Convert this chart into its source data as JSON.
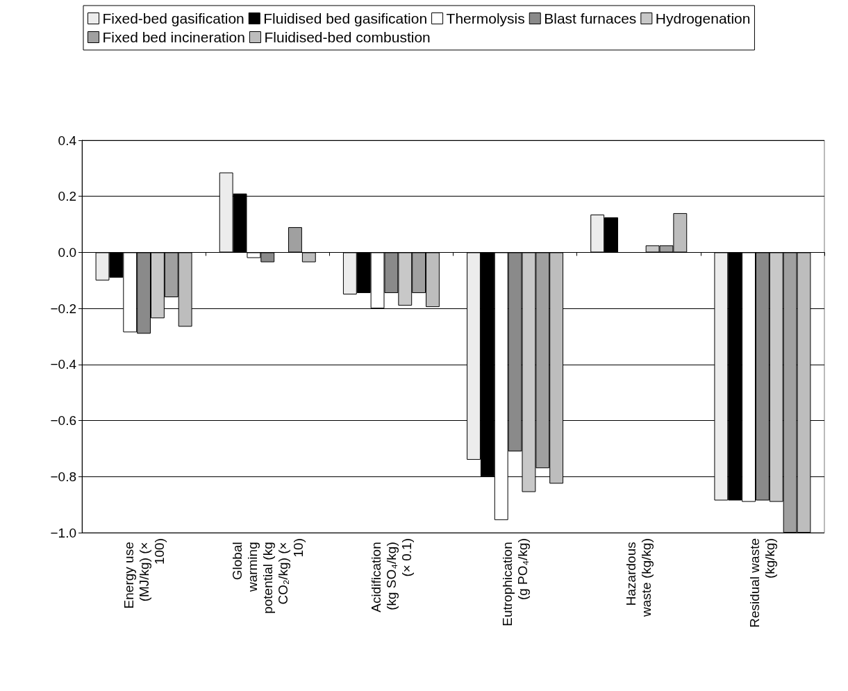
{
  "chart_data": {
    "type": "bar",
    "categories": [
      "Energy use (MJ/kg) (× 100)",
      "Global warming potential (kg CO₂/kg) (× 10)",
      "Acidification (kg SO₄/kg) (× 0.1)",
      "Eutrophication (g PO₄/kg)",
      "Hazardous waste (kg/kg)",
      "Residual waste (kg/kg)"
    ],
    "series": [
      {
        "name": "Fixed-bed gasification",
        "color": "#ececec",
        "values": [
          -0.1,
          0.285,
          -0.15,
          -0.74,
          0.135,
          -0.885
        ]
      },
      {
        "name": "Fluidised bed gasification",
        "color": "#000000",
        "values": [
          -0.09,
          0.21,
          -0.145,
          -0.8,
          0.125,
          -0.885
        ]
      },
      {
        "name": "Thermolysis",
        "color": "#ffffff",
        "values": [
          -0.285,
          -0.02,
          -0.2,
          -0.955,
          0,
          -0.89
        ]
      },
      {
        "name": "Blast furnaces",
        "color": "#8a8a8a",
        "values": [
          -0.29,
          -0.035,
          -0.145,
          -0.71,
          0,
          -0.885
        ]
      },
      {
        "name": "Hydrogenation",
        "color": "#c8c8c8",
        "values": [
          -0.235,
          0,
          -0.19,
          -0.855,
          0.025,
          -0.89
        ]
      },
      {
        "name": "Fixed bed incineration",
        "color": "#a0a0a0",
        "values": [
          -0.16,
          0.09,
          -0.145,
          -0.77,
          0.025,
          -1.0
        ]
      },
      {
        "name": "Fluidised-bed combustion",
        "color": "#bdbdbd",
        "values": [
          -0.265,
          -0.035,
          -0.195,
          -0.825,
          0.14,
          -1.0
        ]
      }
    ],
    "ylim": [
      -1.0,
      0.4
    ],
    "yticks": [
      0.4,
      0.2,
      {
        "value": 0,
        "label": "0.0"
      },
      {
        "value": -0.2,
        "label": "−0.2"
      },
      {
        "value": -0.4,
        "label": "−0.4"
      },
      {
        "value": -0.6,
        "label": "−0.6"
      },
      {
        "value": -0.8,
        "label": "−0.8"
      },
      {
        "value": -1.0,
        "label": "−1.0"
      }
    ],
    "grid": "y",
    "legend": "top"
  }
}
